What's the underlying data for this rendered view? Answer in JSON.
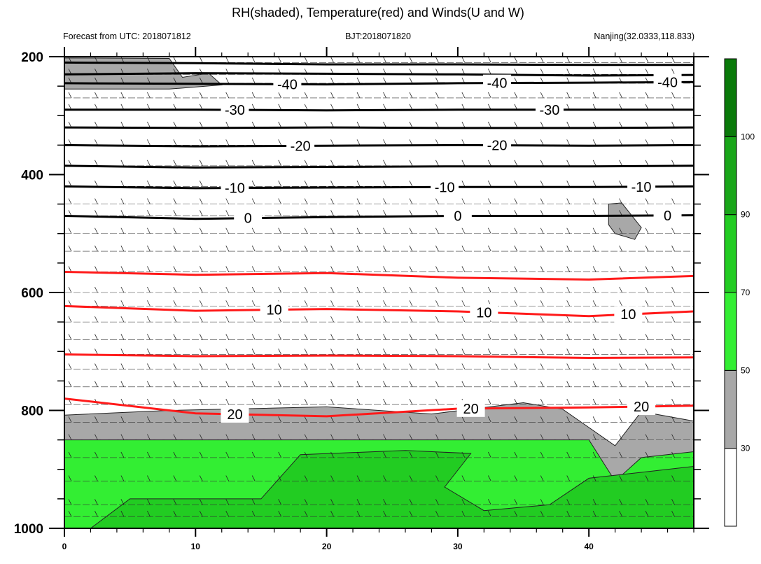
{
  "title": "RH(shaded), Temperature(red) and Winds(U and W)",
  "subtitle_left": "Forecast from UTC: 2018071812",
  "subtitle_center": "BJT:2018071820",
  "subtitle_right": "Nanjing(32.0333,118.833)",
  "colors": {
    "temperature_warm": "#ff1a1a",
    "temperature_cold": "#000000",
    "rh_30_50": "#a8a8a8",
    "rh_50_70": "#33ee33",
    "rh_70_90": "#22cc22",
    "rh_90_100": "#19a619",
    "rh_gt_100": "#0a7a0a",
    "background": "#ffffff"
  },
  "chart_data": {
    "type": "contour",
    "xlim": [
      0,
      48
    ],
    "ylim": [
      1000,
      200
    ],
    "x_ticks": [
      0,
      10,
      20,
      30,
      40
    ],
    "x_tick_labels": [
      "0",
      "10",
      "20",
      "30",
      "40"
    ],
    "y_ticks": [
      200,
      400,
      600,
      800,
      1000
    ],
    "y_tick_labels": [
      "200",
      "400",
      "600",
      "800",
      "1000"
    ],
    "colorbar": {
      "levels": [
        30,
        50,
        70,
        90,
        100
      ],
      "labels": [
        "30",
        "50",
        "70",
        "90",
        "100"
      ],
      "colors": [
        "#ffffff",
        "#a8a8a8",
        "#33ee33",
        "#22cc22",
        "#19a619",
        "#0a7a0a"
      ]
    },
    "temperature_contours": [
      {
        "level": -40,
        "label": "-40",
        "color": "#000000",
        "points": [
          [
            0,
            245
          ],
          [
            10,
            246
          ],
          [
            20,
            247
          ],
          [
            30,
            245
          ],
          [
            40,
            244
          ],
          [
            48,
            243
          ]
        ],
        "label_x": [
          17,
          33,
          46
        ]
      },
      {
        "level": -30,
        "label": "-30",
        "color": "#000000",
        "points": [
          [
            0,
            290
          ],
          [
            10,
            290
          ],
          [
            20,
            291
          ],
          [
            30,
            290
          ],
          [
            40,
            290
          ],
          [
            48,
            290
          ]
        ],
        "label_x": [
          13,
          37
        ]
      },
      {
        "level": -20,
        "label": "-20",
        "color": "#000000",
        "points": [
          [
            0,
            350
          ],
          [
            10,
            352
          ],
          [
            20,
            351
          ],
          [
            30,
            350
          ],
          [
            40,
            351
          ],
          [
            48,
            350
          ]
        ],
        "label_x": [
          18,
          33
        ]
      },
      {
        "level": -10,
        "label": "-10",
        "color": "#000000",
        "points": [
          [
            0,
            420
          ],
          [
            10,
            423
          ],
          [
            20,
            422
          ],
          [
            30,
            421
          ],
          [
            40,
            421
          ],
          [
            48,
            420
          ]
        ],
        "label_x": [
          13,
          29,
          44
        ]
      },
      {
        "level": 0,
        "label": "0",
        "color": "#000000",
        "points": [
          [
            0,
            470
          ],
          [
            10,
            475
          ],
          [
            20,
            472
          ],
          [
            30,
            470
          ],
          [
            40,
            470
          ],
          [
            48,
            469
          ]
        ],
        "label_x": [
          14,
          30,
          46
        ]
      },
      {
        "level": 10,
        "label": "10",
        "color": "#ff1a1a",
        "points": [
          [
            0,
            623
          ],
          [
            10,
            631
          ],
          [
            20,
            628
          ],
          [
            30,
            632
          ],
          [
            40,
            640
          ],
          [
            48,
            632
          ]
        ],
        "label_x": [
          16,
          32,
          43
        ]
      },
      {
        "level": 20,
        "label": "20",
        "color": "#ff1a1a",
        "points": [
          [
            0,
            780
          ],
          [
            10,
            805
          ],
          [
            20,
            810
          ],
          [
            30,
            797
          ],
          [
            40,
            795
          ],
          [
            48,
            792
          ]
        ],
        "label_x": [
          13,
          31,
          44
        ]
      }
    ],
    "unlabeled_temperature_lines": [
      {
        "color": "#000000",
        "points": [
          [
            0,
            210
          ],
          [
            10,
            211
          ],
          [
            20,
            213
          ],
          [
            30,
            213
          ],
          [
            40,
            214
          ],
          [
            48,
            214
          ]
        ]
      },
      {
        "color": "#000000",
        "points": [
          [
            0,
            230
          ],
          [
            10,
            228
          ],
          [
            20,
            229
          ],
          [
            30,
            230
          ],
          [
            40,
            232
          ],
          [
            48,
            231
          ]
        ]
      },
      {
        "color": "#000000",
        "points": [
          [
            0,
            320
          ],
          [
            10,
            321
          ],
          [
            20,
            320
          ],
          [
            30,
            321
          ],
          [
            40,
            321
          ],
          [
            48,
            320
          ]
        ]
      },
      {
        "color": "#000000",
        "points": [
          [
            0,
            385
          ],
          [
            10,
            388
          ],
          [
            20,
            387
          ],
          [
            30,
            386
          ],
          [
            40,
            386
          ],
          [
            48,
            385
          ]
        ]
      },
      {
        "color": "#ff1a1a",
        "points": [
          [
            0,
            565
          ],
          [
            10,
            570
          ],
          [
            20,
            567
          ],
          [
            30,
            575
          ],
          [
            40,
            578
          ],
          [
            48,
            572
          ]
        ]
      },
      {
        "color": "#ff1a1a",
        "points": [
          [
            0,
            705
          ],
          [
            10,
            708
          ],
          [
            20,
            707
          ],
          [
            30,
            708
          ],
          [
            40,
            711
          ],
          [
            48,
            710
          ]
        ]
      }
    ],
    "rh_regions": [
      {
        "level": "30-50",
        "color": "#a8a8a8",
        "description": "near-surface layer",
        "polygon": [
          [
            0,
            808
          ],
          [
            8,
            800
          ],
          [
            20,
            794
          ],
          [
            28,
            806
          ],
          [
            35,
            787
          ],
          [
            38,
            798
          ],
          [
            42,
            860
          ],
          [
            44,
            802
          ],
          [
            48,
            818
          ],
          [
            48,
            1000
          ],
          [
            0,
            1000
          ]
        ]
      },
      {
        "level": "30-50",
        "color": "#a8a8a8",
        "description": "upper dry patch",
        "polygon": [
          [
            0,
            202
          ],
          [
            8,
            203
          ],
          [
            9,
            235
          ],
          [
            11,
            228
          ],
          [
            12,
            248
          ],
          [
            8,
            255
          ],
          [
            0,
            255
          ]
        ]
      },
      {
        "level": "30-50",
        "color": "#a8a8a8",
        "description": "mid patch",
        "polygon": [
          [
            41.5,
            450
          ],
          [
            42.5,
            448
          ],
          [
            44,
            490
          ],
          [
            43.5,
            510
          ],
          [
            42,
            500
          ],
          [
            41.5,
            485
          ]
        ]
      },
      {
        "level": "50-70",
        "color": "#33ee33",
        "polygon": [
          [
            0,
            850
          ],
          [
            40,
            850
          ],
          [
            42,
            920
          ],
          [
            44,
            880
          ],
          [
            48,
            870
          ],
          [
            48,
            1000
          ],
          [
            0,
            1000
          ]
        ]
      },
      {
        "level": "70-90",
        "color": "#22cc22",
        "polygon": [
          [
            2,
            1000
          ],
          [
            5,
            950
          ],
          [
            15,
            950
          ],
          [
            18,
            875
          ],
          [
            26,
            868
          ],
          [
            31,
            873
          ],
          [
            29,
            930
          ],
          [
            32,
            970
          ],
          [
            37,
            960
          ],
          [
            40,
            915
          ],
          [
            44,
            905
          ],
          [
            48,
            895
          ],
          [
            48,
            1000
          ]
        ]
      }
    ],
    "wind_barb_rows_hpa": [
      210,
      230,
      245,
      270,
      290,
      320,
      350,
      385,
      420,
      450,
      470,
      500,
      530,
      565,
      600,
      623,
      650,
      680,
      705,
      730,
      760,
      790,
      820,
      850,
      880,
      920,
      960,
      980
    ]
  }
}
